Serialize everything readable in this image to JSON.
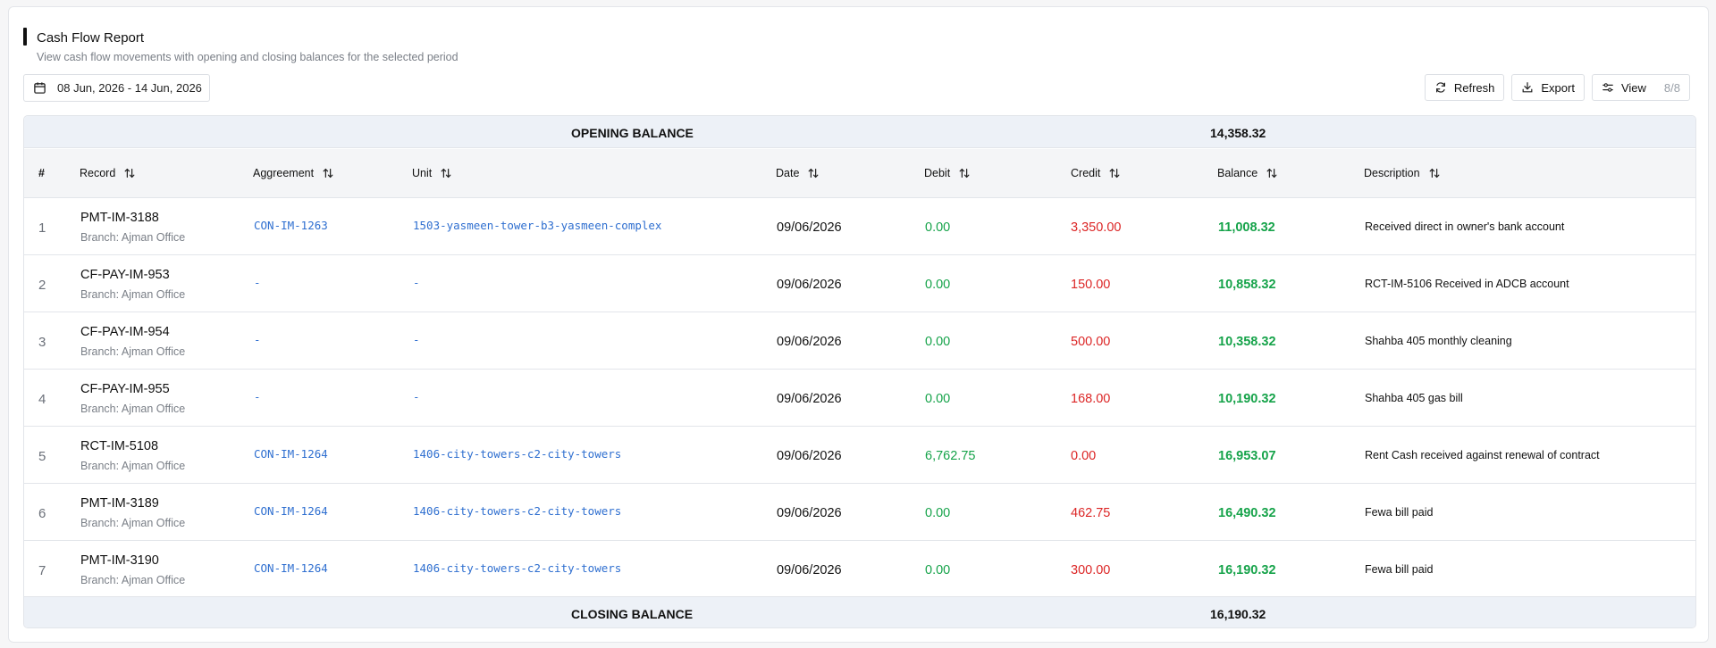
{
  "header": {
    "title": "Cash Flow Report",
    "subtitle": "View cash flow movements with opening and closing balances for the selected period"
  },
  "filters": {
    "date_range": "08 Jun, 2026 - 14 Jun, 2026",
    "date_icon": "calendar-icon"
  },
  "toolbar": {
    "refresh_label": "Refresh",
    "refresh_icon": "refresh-icon",
    "export_label": "Export",
    "export_icon": "download-icon",
    "view_label": "View",
    "view_count": "8/8",
    "view_icon": "sliders-icon"
  },
  "table": {
    "opening_label": "OPENING BALANCE",
    "opening_value": "14,358.32",
    "closing_label": "CLOSING BALANCE",
    "closing_value": "16,190.32",
    "columns": {
      "num": "#",
      "record": "Record",
      "agreement": "Aggreement",
      "unit": "Unit",
      "date": "Date",
      "debit": "Debit",
      "credit": "Credit",
      "balance": "Balance",
      "description": "Description"
    },
    "rows": [
      {
        "num": "1",
        "record": "PMT-IM-3188",
        "branch": "Branch: Ajman Office",
        "agreement": "CON-IM-1263",
        "unit": "1503-yasmeen-tower-b3-yasmeen-complex",
        "date": "09/06/2026",
        "debit": "0.00",
        "credit": "3,350.00",
        "balance": "11,008.32",
        "description": "Received direct in owner's bank account"
      },
      {
        "num": "2",
        "record": "CF-PAY-IM-953",
        "branch": "Branch: Ajman Office",
        "agreement": "-",
        "unit": "-",
        "date": "09/06/2026",
        "debit": "0.00",
        "credit": "150.00",
        "balance": "10,858.32",
        "description": "RCT-IM-5106 Received in ADCB account"
      },
      {
        "num": "3",
        "record": "CF-PAY-IM-954",
        "branch": "Branch: Ajman Office",
        "agreement": "-",
        "unit": "-",
        "date": "09/06/2026",
        "debit": "0.00",
        "credit": "500.00",
        "balance": "10,358.32",
        "description": "Shahba 405 monthly cleaning"
      },
      {
        "num": "4",
        "record": "CF-PAY-IM-955",
        "branch": "Branch: Ajman Office",
        "agreement": "-",
        "unit": "-",
        "date": "09/06/2026",
        "debit": "0.00",
        "credit": "168.00",
        "balance": "10,190.32",
        "description": "Shahba 405 gas bill"
      },
      {
        "num": "5",
        "record": "RCT-IM-5108",
        "branch": "Branch: Ajman Office",
        "agreement": "CON-IM-1264",
        "unit": "1406-city-towers-c2-city-towers",
        "date": "09/06/2026",
        "debit": "6,762.75",
        "credit": "0.00",
        "balance": "16,953.07",
        "description": "Rent Cash received against renewal of contract"
      },
      {
        "num": "6",
        "record": "PMT-IM-3189",
        "branch": "Branch: Ajman Office",
        "agreement": "CON-IM-1264",
        "unit": "1406-city-towers-c2-city-towers",
        "date": "09/06/2026",
        "debit": "0.00",
        "credit": "462.75",
        "balance": "16,490.32",
        "description": "Fewa bill paid"
      },
      {
        "num": "7",
        "record": "PMT-IM-3190",
        "branch": "Branch: Ajman Office",
        "agreement": "CON-IM-1264",
        "unit": "1406-city-towers-c2-city-towers",
        "date": "09/06/2026",
        "debit": "0.00",
        "credit": "300.00",
        "balance": "16,190.32",
        "description": "Fewa bill paid"
      }
    ]
  },
  "colors": {
    "debit": "#16a34a",
    "credit": "#dc2626",
    "balance": "#16a34a",
    "link": "#2f6fd0"
  }
}
